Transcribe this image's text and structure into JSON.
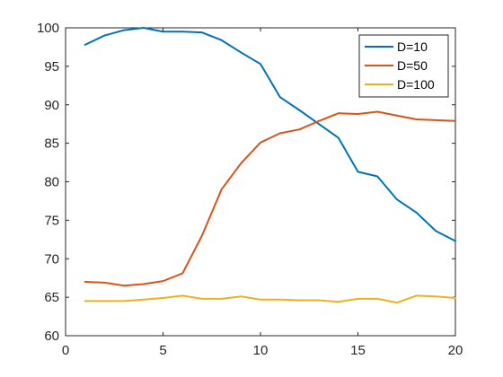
{
  "chart_data": {
    "type": "line",
    "title": "",
    "xlabel": "",
    "ylabel": "",
    "xlim": [
      0,
      20
    ],
    "ylim": [
      60,
      100
    ],
    "xticks": [
      0,
      5,
      10,
      15,
      20
    ],
    "yticks": [
      60,
      65,
      70,
      75,
      80,
      85,
      90,
      95,
      100
    ],
    "grid": false,
    "legend_position": "top-right",
    "x": [
      1,
      2,
      3,
      4,
      5,
      6,
      7,
      8,
      9,
      10,
      11,
      12,
      13,
      14,
      15,
      16,
      17,
      18,
      19,
      20
    ],
    "series": [
      {
        "name": "D=10",
        "color": "#0072BD",
        "values": [
          97.8,
          99.0,
          99.7,
          100.0,
          99.5,
          99.5,
          99.4,
          98.4,
          96.8,
          95.3,
          91.0,
          89.3,
          87.5,
          85.7,
          81.3,
          80.7,
          77.7,
          76.0,
          73.6,
          72.3
        ]
      },
      {
        "name": "D=50",
        "color": "#D95319",
        "values": [
          67.0,
          66.9,
          66.5,
          66.7,
          67.1,
          68.1,
          73.0,
          79.0,
          82.4,
          85.1,
          86.3,
          86.8,
          87.9,
          88.9,
          88.8,
          89.1,
          88.6,
          88.1,
          88.0,
          87.9
        ]
      },
      {
        "name": "D=100",
        "color": "#EDB120",
        "values": [
          64.5,
          64.5,
          64.5,
          64.7,
          64.9,
          65.2,
          64.8,
          64.8,
          65.1,
          64.7,
          64.7,
          64.6,
          64.6,
          64.4,
          64.8,
          64.8,
          64.3,
          65.2,
          65.1,
          64.9
        ]
      }
    ]
  }
}
